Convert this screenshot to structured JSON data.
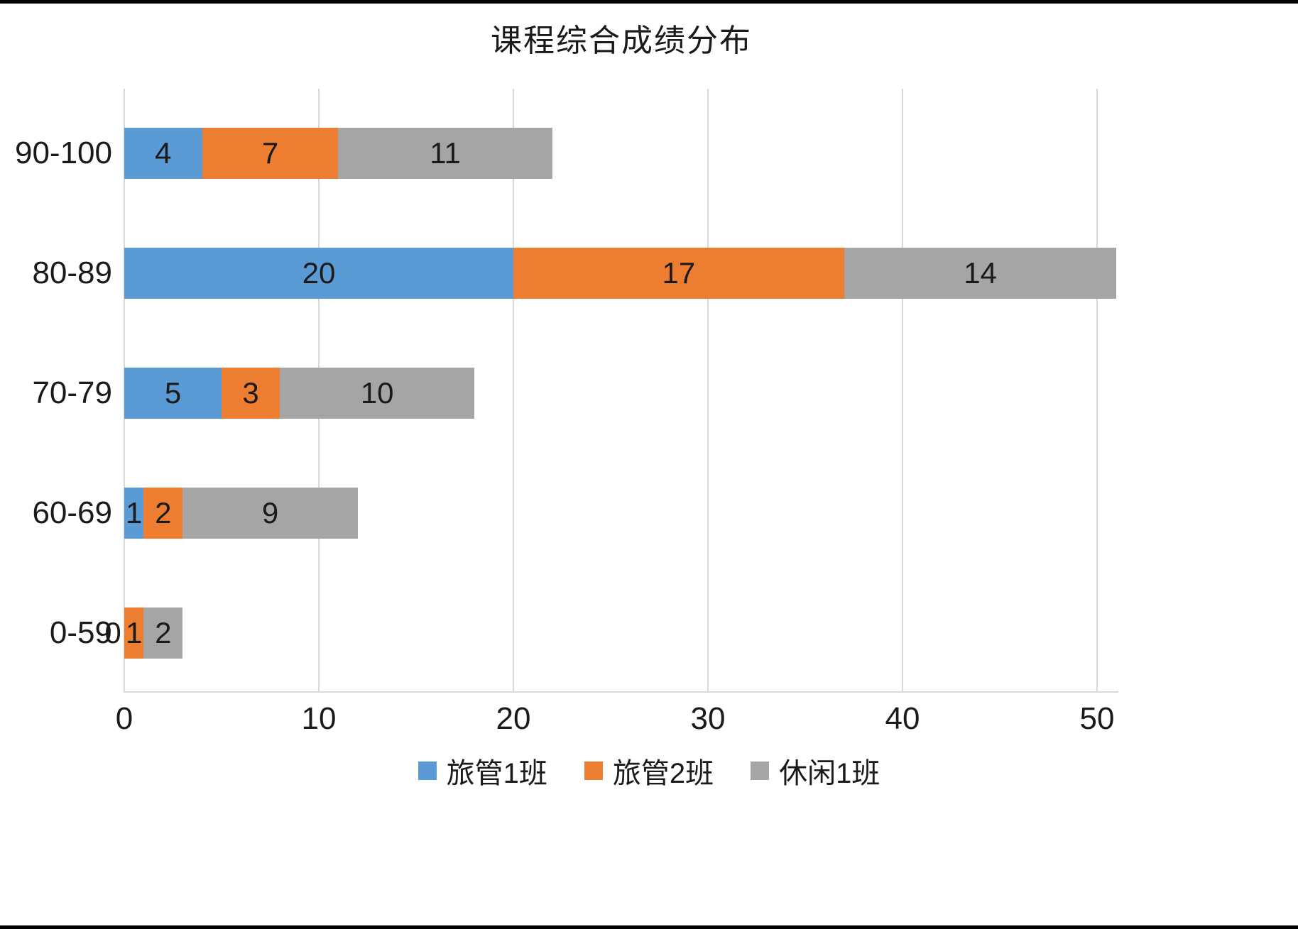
{
  "chart_data": {
    "type": "bar",
    "orientation": "horizontal",
    "stacked": true,
    "title": "课程综合成绩分布",
    "categories": [
      "90-100",
      "80-89",
      "70-79",
      "60-69",
      "0-59"
    ],
    "series": [
      {
        "name": "旅管1班",
        "color": "#5B9BD5",
        "values": [
          4,
          20,
          5,
          1,
          0
        ]
      },
      {
        "name": "旅管2班",
        "color": "#ED7D31",
        "values": [
          7,
          17,
          3,
          2,
          1
        ]
      },
      {
        "name": "休闲1班",
        "color": "#A5A5A5",
        "values": [
          11,
          14,
          10,
          9,
          2
        ]
      }
    ],
    "totals": [
      22,
      51,
      18,
      12,
      3
    ],
    "xticks": [
      0,
      10,
      20,
      30,
      40,
      50
    ],
    "xlim": [
      0,
      51.1
    ],
    "grid": "vertical",
    "data_labels": true,
    "legend_position": "bottom",
    "colors": {
      "gridline": "#D9D9D9",
      "axis_line": "#D9D9D9",
      "text": "#1A1A1A",
      "background": "#FFFFFF"
    }
  }
}
